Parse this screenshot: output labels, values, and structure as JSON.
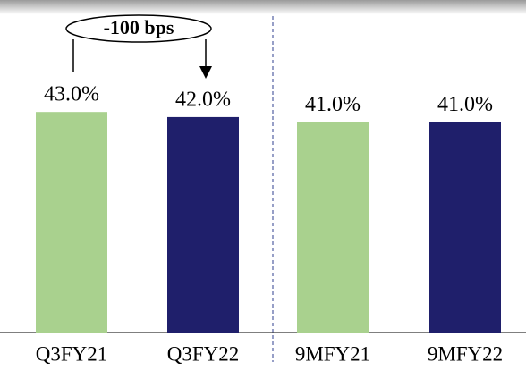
{
  "chart_data": {
    "type": "bar",
    "categories": [
      "Q3FY21",
      "Q3FY22",
      "9MFY21",
      "9MFY22"
    ],
    "values": [
      43.0,
      42.0,
      41.0,
      41.0
    ],
    "value_labels": [
      "43.0%",
      "42.0%",
      "41.0%",
      "41.0%"
    ],
    "colors": [
      "#a9d18e",
      "#1f1f6b",
      "#a9d18e",
      "#1f1f6b"
    ],
    "annotation": "-100 bps"
  }
}
